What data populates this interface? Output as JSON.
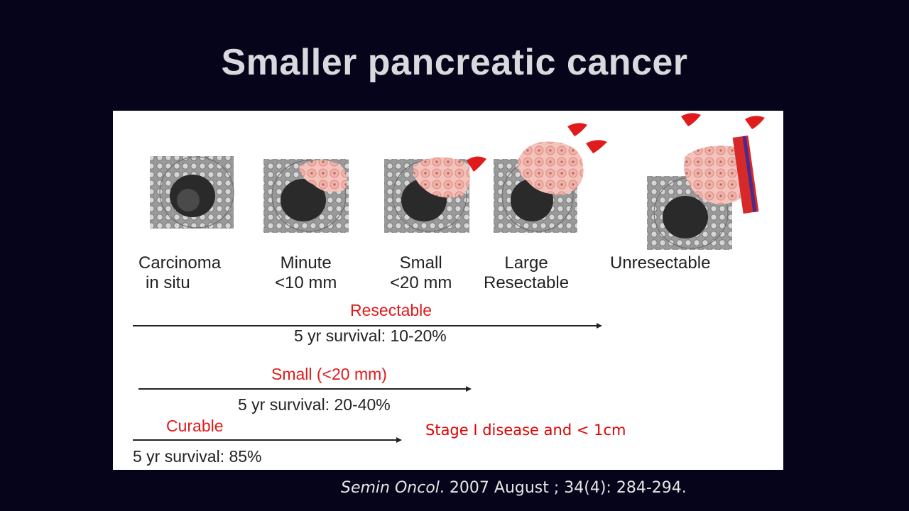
{
  "slide": {
    "title": "Smaller pancreatic cancer"
  },
  "stages": [
    {
      "line1": "Carcinoma",
      "line2": "in situ"
    },
    {
      "line1": "Minute",
      "line2": "<10 mm"
    },
    {
      "line1": "Small",
      "line2": "<20 mm"
    },
    {
      "line1": "Large",
      "line2": "Resectable"
    },
    {
      "line1": "Unresectable",
      "line2": ""
    }
  ],
  "ranges": [
    {
      "label": "Resectable",
      "survival": "5 yr survival: 10-20%"
    },
    {
      "label": "Small (<20 mm)",
      "survival": "5 yr survival: 20-40%"
    },
    {
      "label": "Curable",
      "survival": "5 yr survival: 85%"
    }
  ],
  "note": "Stage I disease and < 1cm",
  "citation": {
    "journal": "Semin Oncol",
    "rest": ". 2007  August  ; 34(4):  284-294."
  },
  "colors": {
    "background": "#05041a",
    "accent_red": "#e11b1b",
    "tumor_pink": "#f3b7ae"
  }
}
